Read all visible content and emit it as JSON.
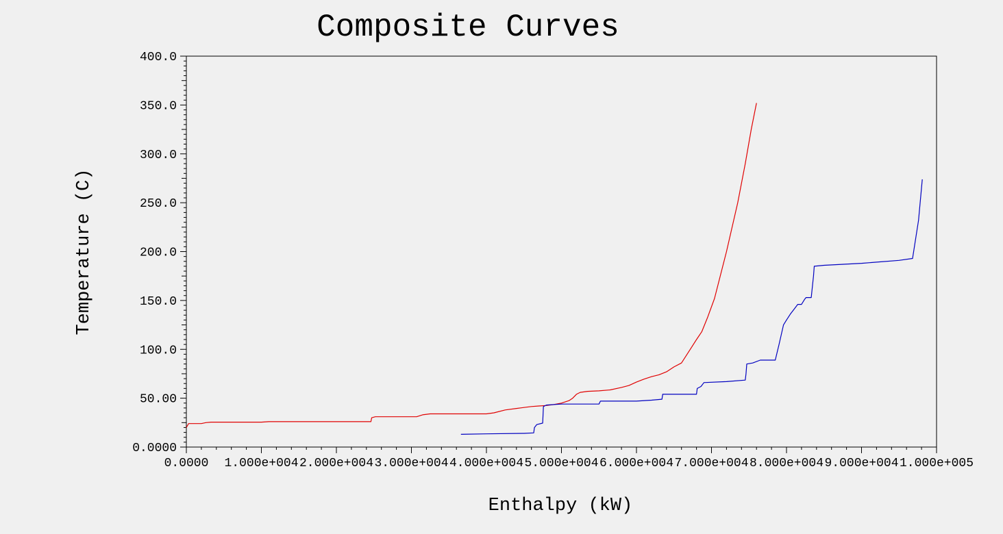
{
  "chart_data": {
    "type": "line",
    "title": "Composite Curves",
    "xlabel": "Enthalpy (kW)",
    "ylabel": "Temperature (C)",
    "xlim": [
      0,
      100000
    ],
    "ylim": [
      0,
      400
    ],
    "grid": false,
    "x_ticks": [
      0,
      10000,
      20000,
      30000,
      40000,
      50000,
      60000,
      70000,
      80000,
      90000,
      100000
    ],
    "x_tick_labels": [
      "0.0000",
      "1.000e+004",
      "2.000e+004",
      "3.000e+004",
      "4.000e+004",
      "5.000e+004",
      "6.000e+004",
      "7.000e+004",
      "8.000e+004",
      "9.000e+004",
      "1.000e+005"
    ],
    "y_ticks": [
      0,
      50,
      100,
      150,
      200,
      250,
      300,
      350,
      400
    ],
    "y_tick_labels": [
      "0.0000",
      "50.00",
      "100.0",
      "150.0",
      "200.0",
      "250.0",
      "300.0",
      "350.0",
      "400.0"
    ],
    "series": [
      {
        "color": "#e00000",
        "points": [
          [
            0,
            20
          ],
          [
            300,
            24
          ],
          [
            2000,
            24
          ],
          [
            2600,
            25
          ],
          [
            3300,
            25.5
          ],
          [
            10000,
            25.5
          ],
          [
            11000,
            26
          ],
          [
            20000,
            26
          ],
          [
            24600,
            26
          ],
          [
            24700,
            30
          ],
          [
            25200,
            31
          ],
          [
            30700,
            31
          ],
          [
            31500,
            33
          ],
          [
            32500,
            34
          ],
          [
            40000,
            34
          ],
          [
            41000,
            35
          ],
          [
            42500,
            38
          ],
          [
            44000,
            39.5
          ],
          [
            45000,
            40.5
          ],
          [
            46000,
            41.5
          ],
          [
            47000,
            42
          ],
          [
            48000,
            42.5
          ],
          [
            49000,
            43.5
          ],
          [
            50000,
            45
          ],
          [
            51000,
            47.5
          ],
          [
            51500,
            50
          ],
          [
            52000,
            54
          ],
          [
            52500,
            56
          ],
          [
            53500,
            57
          ],
          [
            55000,
            57.5
          ],
          [
            56500,
            58.5
          ],
          [
            58000,
            61
          ],
          [
            59000,
            63
          ],
          [
            60000,
            66.5
          ],
          [
            61000,
            69.5
          ],
          [
            62000,
            72
          ],
          [
            63000,
            74
          ],
          [
            64000,
            77
          ],
          [
            65000,
            82
          ],
          [
            66000,
            86
          ],
          [
            67000,
            98
          ],
          [
            68000,
            110
          ],
          [
            68700,
            118
          ],
          [
            69500,
            133
          ],
          [
            70400,
            152
          ],
          [
            72000,
            200
          ],
          [
            73500,
            250
          ],
          [
            74500,
            290
          ],
          [
            75300,
            325
          ],
          [
            76000,
            352
          ]
        ]
      },
      {
        "color": "#0000c0",
        "points": [
          [
            36600,
            13
          ],
          [
            40000,
            13.5
          ],
          [
            45000,
            14
          ],
          [
            46300,
            14.5
          ],
          [
            46400,
            20
          ],
          [
            46700,
            23
          ],
          [
            47500,
            24.5
          ],
          [
            47600,
            41.5
          ],
          [
            48000,
            43
          ],
          [
            50000,
            44
          ],
          [
            55000,
            44
          ],
          [
            55200,
            47
          ],
          [
            60000,
            47
          ],
          [
            62000,
            48
          ],
          [
            63400,
            49
          ],
          [
            63500,
            54
          ],
          [
            68000,
            54
          ],
          [
            68100,
            60
          ],
          [
            68600,
            62
          ],
          [
            69000,
            66
          ],
          [
            72000,
            67
          ],
          [
            74500,
            68.5
          ],
          [
            74600,
            75
          ],
          [
            74700,
            85
          ],
          [
            75500,
            86
          ],
          [
            76500,
            89
          ],
          [
            78000,
            89
          ],
          [
            78500,
            89
          ],
          [
            79000,
            105
          ],
          [
            79600,
            125
          ],
          [
            80000,
            130
          ],
          [
            80500,
            136
          ],
          [
            81000,
            141
          ],
          [
            81500,
            146
          ],
          [
            82000,
            146
          ],
          [
            82400,
            151
          ],
          [
            82600,
            153
          ],
          [
            83300,
            153
          ],
          [
            83600,
            175
          ],
          [
            83700,
            185
          ],
          [
            85000,
            186
          ],
          [
            90000,
            188
          ],
          [
            95000,
            191
          ],
          [
            96800,
            193
          ],
          [
            97600,
            232
          ],
          [
            98100,
            274
          ]
        ]
      }
    ]
  }
}
